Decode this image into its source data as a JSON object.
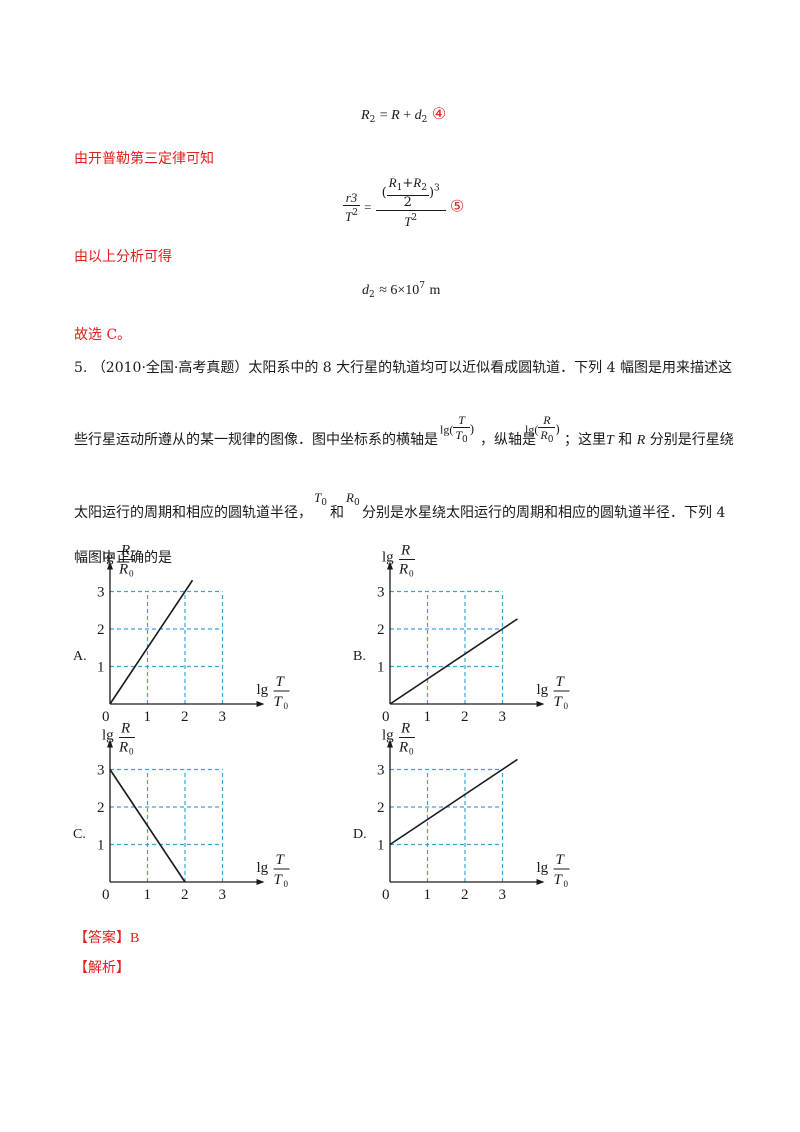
{
  "eq4": {
    "lhs": "R",
    "lhs_sub": "2",
    "rhs_a": "R",
    "rhs_b": "d",
    "rhs_b_sub": "2",
    "tag": "④"
  },
  "line_kepler": "由开普勒第三定律可知",
  "eq5": {
    "num": "r3",
    "den": "T",
    "den_sup": "2",
    "big_num_a": "R",
    "a_sub": "1",
    "big_num_b": "R",
    "b_sub": "2",
    "exp": "3",
    "big_two": "2",
    "big_den": "T",
    "big_den_sup": "2",
    "tag": "⑤"
  },
  "line_analysis": "由以上分析可得",
  "eq_result": {
    "lhs": "d",
    "lhs_sub": "2",
    "rhs": "≈ 6×10",
    "rhs_sup": "7",
    "unit": "m"
  },
  "line_choose": "故选 C。",
  "question": {
    "number": "5.",
    "source": "（2010·全国·高考真题）",
    "text1": "太阳系中的 8 大行星的轨道均可以近似看成圆轨道．下列 4 幅图是用来描述这",
    "text2a": "些行星运动所遵从的某一规律的图像．图中坐标系的横轴是",
    "text2b": "，纵轴是",
    "text2c": "；这里",
    "text2d": "T",
    "text2e": " 和 ",
    "text2f": "R",
    "text2g": " 分别是行星绕",
    "text3a": "太阳运行的周期和相应的圆轨道半径，",
    "text3b": "和",
    "text3c": " 分别是水星绕太阳运行的周期和相应的圆轨道半径．下列 4",
    "text4": "幅图中正确的是",
    "lg": "lg(",
    "T": "T",
    "T0": "T",
    "R": "R",
    "R0": "R",
    "zero_sub": "0",
    "close": ")"
  },
  "chart_data": [
    {
      "type": "line",
      "option": "A.",
      "xlabel_num": "T",
      "xlabel_den": "T",
      "ylabel_num": "R",
      "ylabel_den": "R",
      "lg": "lg",
      "x_ticks": [
        "0",
        "1",
        "2",
        "3"
      ],
      "y_ticks": [
        "1",
        "2",
        "3"
      ],
      "series": [
        {
          "x": [
            0,
            2.2
          ],
          "y": [
            0,
            3.3
          ]
        }
      ],
      "xlim": [
        0,
        3
      ],
      "ylim": [
        0,
        3
      ],
      "grid": true
    },
    {
      "type": "line",
      "option": "B.",
      "xlabel_num": "T",
      "xlabel_den": "T",
      "ylabel_num": "R",
      "ylabel_den": "R",
      "lg": "lg",
      "x_ticks": [
        "0",
        "1",
        "2",
        "3"
      ],
      "y_ticks": [
        "1",
        "2",
        "3"
      ],
      "series": [
        {
          "x": [
            0,
            3.4
          ],
          "y": [
            0,
            2.27
          ]
        }
      ],
      "xlim": [
        0,
        3
      ],
      "ylim": [
        0,
        3
      ],
      "grid": true
    },
    {
      "type": "line",
      "option": "C.",
      "xlabel_num": "T",
      "xlabel_den": "T",
      "ylabel_num": "R",
      "ylabel_den": "R",
      "lg": "lg",
      "x_ticks": [
        "0",
        "1",
        "2",
        "3"
      ],
      "y_ticks": [
        "1",
        "2",
        "3"
      ],
      "series": [
        {
          "x": [
            0,
            2
          ],
          "y": [
            3,
            0
          ]
        }
      ],
      "xlim": [
        0,
        3
      ],
      "ylim": [
        0,
        3
      ],
      "grid": true
    },
    {
      "type": "line",
      "option": "D.",
      "xlabel_num": "T",
      "xlabel_den": "T",
      "ylabel_num": "R",
      "ylabel_den": "R",
      "lg": "lg",
      "x_ticks": [
        "0",
        "1",
        "2",
        "3"
      ],
      "y_ticks": [
        "1",
        "2",
        "3"
      ],
      "series": [
        {
          "x": [
            0,
            3.4
          ],
          "y": [
            1,
            3.27
          ]
        }
      ],
      "xlim": [
        0,
        3
      ],
      "ylim": [
        0,
        3
      ],
      "grid": true
    }
  ],
  "answer": {
    "label": "【答案】",
    "value": "B"
  },
  "analysis_label": "【解析】",
  "colors": {
    "red": "#e0201b",
    "grid": "#3aa3d8",
    "text": "#1a1a1a"
  }
}
